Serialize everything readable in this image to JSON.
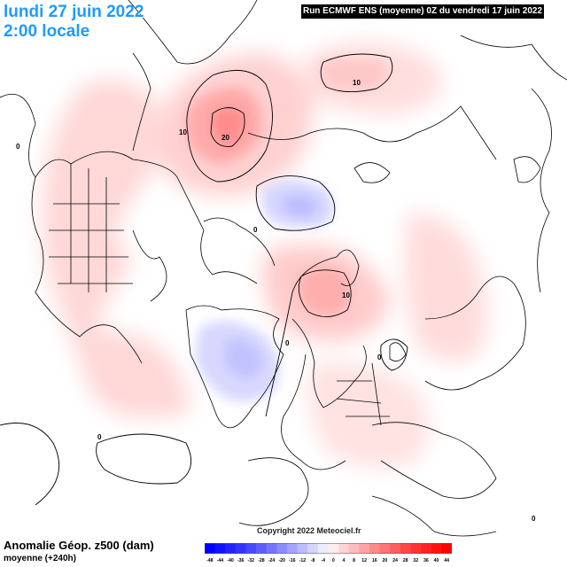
{
  "header": {
    "date": "lundi 27 juin 2022",
    "local_time": "2:00 locale",
    "run_info": "Run ECMWF ENS (moyenne) 0Z du vendredi 17 juin 2022"
  },
  "footer": {
    "variable": "Anomalie Géop. z500 (dam)",
    "subtitle": "moyenne   (+240h)",
    "copyright": "Copyright 2022 Meteociel.fr"
  },
  "legend": {
    "labels": [
      "-48",
      "-44",
      "-40",
      "-36",
      "-32",
      "-28",
      "-24",
      "-20",
      "-16",
      "-12",
      "-8",
      "-4",
      "0",
      "4",
      "8",
      "12",
      "16",
      "20",
      "24",
      "28",
      "32",
      "36",
      "40",
      "44"
    ],
    "colors": [
      "#0000ff",
      "#1111ff",
      "#2222ff",
      "#3333ff",
      "#4848ff",
      "#5e5eff",
      "#7575ff",
      "#8c8cff",
      "#a4a4ff",
      "#bcbcff",
      "#d4d4ff",
      "#ececff",
      "#ffecec",
      "#ffd4d4",
      "#ffbcbc",
      "#ffa4a4",
      "#ff8c8c",
      "#ff7575",
      "#ff5e5e",
      "#ff4848",
      "#ff3333",
      "#ff2222",
      "#ff1111",
      "#ff0000"
    ]
  },
  "contour_labels": [
    "10",
    "20",
    "10",
    "0",
    "10",
    "0",
    "0",
    "0",
    "0",
    "0"
  ],
  "colors": {
    "title_blue": "#1e9bff",
    "positive_anomaly": "#ff8c8c",
    "negative_anomaly": "#8c8cff",
    "banner_bg": "#000000"
  }
}
